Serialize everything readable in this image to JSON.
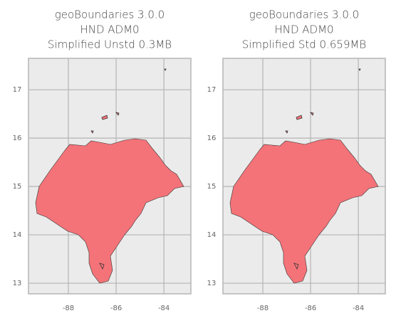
{
  "chart_data": [
    {
      "type": "map",
      "title": [
        "geoBoundaries 3.0.0",
        "HND ADM0",
        "Simplified Unstd 0.3MB"
      ],
      "xlim": [
        -89.67,
        -82.87
      ],
      "ylim": [
        12.78,
        17.65
      ],
      "xticks": [
        -88,
        -86,
        -84
      ],
      "yticks": [
        13,
        14,
        15,
        16,
        17
      ],
      "grid": true,
      "color": "#f47378"
    },
    {
      "type": "map",
      "title": [
        "geoBoundaries 3.0.0",
        "HND ADM0",
        "Simplified Std 0.659MB"
      ],
      "xlim": [
        -89.67,
        -82.87
      ],
      "ylim": [
        12.78,
        17.65
      ],
      "xticks": [
        -88,
        -86,
        -84
      ],
      "yticks": [
        13,
        14,
        15,
        16,
        17
      ],
      "grid": true,
      "color": "#f47378"
    }
  ]
}
